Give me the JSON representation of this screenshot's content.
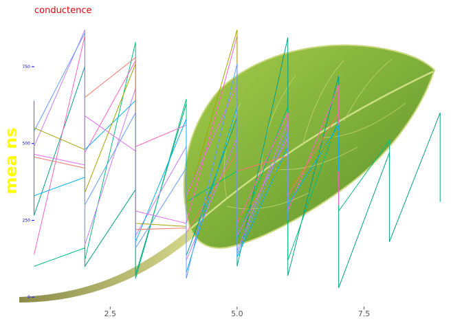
{
  "chart_data": {
    "type": "line",
    "title": "conductence",
    "xlabel": "",
    "ylabel": "mea ns",
    "xlim": [
      0.6,
      9.2
    ],
    "ylim": [
      -40,
      900
    ],
    "x_ticks": [
      2.5,
      5.0,
      7.5
    ],
    "x_tick_labels": [
      "2.5",
      "5.0",
      "7.5"
    ],
    "y_ticks": [
      0,
      250,
      500,
      750
    ],
    "y_tick_labels": [
      "0",
      "250",
      "500",
      "750"
    ],
    "grid": false,
    "legend": "none",
    "background": "leaf photograph",
    "colors": {
      "title": "#e8000b",
      "ylabel": "#ffff00",
      "ytick": "#0000ff",
      "xtick": "#555555",
      "tick_mark": "#0000ff"
    },
    "series": [
      {
        "color": "#00a087",
        "points": [
          [
            1,
            639
          ],
          [
            1,
            266
          ],
          [
            2,
            751
          ],
          [
            2,
            100
          ],
          [
            3,
            350
          ],
          [
            3,
            72
          ],
          [
            4,
            630
          ],
          [
            4,
            135
          ],
          [
            5,
            585
          ],
          [
            5,
            100
          ],
          [
            6,
            845
          ],
          [
            6,
            70
          ],
          [
            7,
            720
          ],
          [
            7,
            30
          ],
          [
            8,
            470
          ],
          [
            8,
            180
          ],
          [
            9,
            600
          ],
          [
            9,
            310
          ]
        ]
      },
      {
        "color": "#00bf7d",
        "points": [
          [
            1,
            100
          ],
          [
            2,
            160
          ],
          [
            2,
            120
          ],
          [
            3,
            830
          ],
          [
            3,
            60
          ],
          [
            4,
            645
          ],
          [
            4,
            310
          ],
          [
            5,
            410
          ],
          [
            5,
            190
          ],
          [
            6,
            620
          ],
          [
            6,
            120
          ],
          [
            7,
            580
          ],
          [
            7,
            280
          ],
          [
            8,
            510
          ],
          [
            8,
            400
          ]
        ]
      },
      {
        "color": "#ff61c3",
        "points": [
          [
            1,
            138
          ],
          [
            2,
            850
          ],
          [
            2,
            470
          ],
          [
            3,
            770
          ],
          [
            3,
            490
          ],
          [
            4,
            560
          ],
          [
            4,
            240
          ],
          [
            5,
            850
          ],
          [
            5,
            240
          ],
          [
            6,
            600
          ],
          [
            6,
            280
          ],
          [
            7,
            690
          ],
          [
            7,
            300
          ]
        ]
      },
      {
        "color": "#c77cff",
        "points": [
          [
            1,
            490
          ],
          [
            2,
            870
          ],
          [
            2,
            170
          ],
          [
            3,
            680
          ],
          [
            3,
            200
          ],
          [
            4,
            490
          ],
          [
            4,
            120
          ],
          [
            5,
            520
          ],
          [
            5,
            150
          ],
          [
            6,
            570
          ],
          [
            6,
            330
          ]
        ]
      },
      {
        "color": "#00b0f6",
        "points": [
          [
            1,
            330
          ],
          [
            2,
            390
          ],
          [
            2,
            480
          ],
          [
            3,
            640
          ],
          [
            3,
            180
          ],
          [
            4,
            580
          ],
          [
            4,
            80
          ],
          [
            5,
            620
          ],
          [
            5,
            130
          ],
          [
            6,
            490
          ],
          [
            6,
            300
          ],
          [
            7,
            560
          ],
          [
            7,
            410
          ]
        ]
      },
      {
        "color": "#a3a500",
        "points": [
          [
            1,
            551
          ],
          [
            2,
            480
          ],
          [
            2,
            340
          ],
          [
            3,
            760
          ],
          [
            3,
            240
          ],
          [
            4,
            230
          ],
          [
            4,
            300
          ],
          [
            5,
            870
          ],
          [
            5,
            250
          ],
          [
            6,
            450
          ],
          [
            6,
            350
          ],
          [
            7,
            540
          ]
        ]
      },
      {
        "color": "#e76bf3",
        "points": [
          [
            1,
            465
          ],
          [
            2,
            430
          ],
          [
            2,
            590
          ],
          [
            3,
            475
          ],
          [
            3,
            280
          ],
          [
            4,
            240
          ],
          [
            4,
            330
          ],
          [
            5,
            690
          ],
          [
            5,
            200
          ],
          [
            6,
            520
          ],
          [
            6,
            310
          ]
        ]
      },
      {
        "color": "#f8766d",
        "points": [
          [
            1,
            456
          ],
          [
            2,
            420
          ],
          [
            2,
            650
          ],
          [
            3,
            780
          ],
          [
            3,
            220
          ],
          [
            4,
            225
          ],
          [
            4,
            210
          ],
          [
            5,
            470
          ],
          [
            5,
            410
          ],
          [
            6,
            460
          ],
          [
            6,
            330
          ],
          [
            7,
            600
          ]
        ]
      },
      {
        "color": "#619cff",
        "points": [
          [
            1,
            540
          ],
          [
            2,
            860
          ],
          [
            2,
            300
          ],
          [
            3,
            600
          ],
          [
            3,
            160
          ],
          [
            4,
            420
          ],
          [
            4,
            60
          ],
          [
            5,
            760
          ],
          [
            5,
            140
          ],
          [
            6,
            540
          ],
          [
            6,
            250
          ]
        ]
      }
    ]
  }
}
